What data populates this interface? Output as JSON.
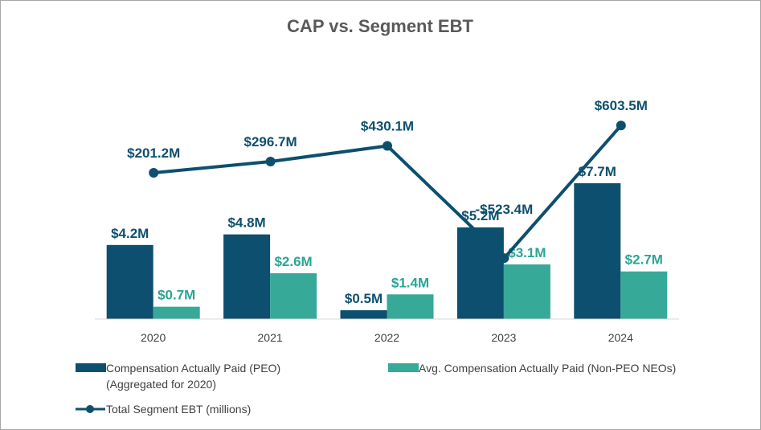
{
  "chart_data": {
    "type": "bar",
    "title": "CAP vs. Segment EBT",
    "categories": [
      "2020",
      "2021",
      "2022",
      "2023",
      "2024"
    ],
    "series": [
      {
        "name": "Compensation Actually Paid (PEO)",
        "name_line2": "(Aggregated for 2020)",
        "values": [
          4.2,
          4.8,
          0.5,
          5.2,
          7.7
        ],
        "labels": [
          "$4.2M",
          "$4.8M",
          "$0.5M",
          "$5.2M",
          "$7.7M"
        ],
        "color": "#0d4f6e"
      },
      {
        "name": "Avg. Compensation Actually Paid (Non-PEO NEOs)",
        "values": [
          0.7,
          2.6,
          1.4,
          3.1,
          2.7
        ],
        "labels": [
          "$0.7M",
          "$2.6M",
          "$1.4M",
          "$3.1M",
          "$2.7M"
        ],
        "color": "#36a999"
      }
    ],
    "line_series": {
      "name": "Total Segment EBT (millions)",
      "values": [
        201.2,
        296.7,
        430.1,
        -523.4,
        603.5
      ],
      "labels": [
        "$201.2M",
        "$296.7M",
        "$430.1M",
        "-$523.4M",
        "$603.5M"
      ],
      "color": "#0d4f6e"
    },
    "bar_axis": {
      "ylim": [
        0,
        8.5
      ]
    },
    "line_axis": {
      "ylim": [
        -1000,
        900
      ]
    },
    "xlabel": "",
    "ylabel": "",
    "grid": false,
    "legend": "bottom"
  }
}
